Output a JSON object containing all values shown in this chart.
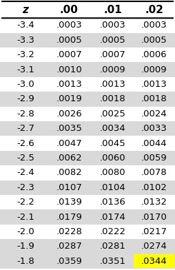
{
  "headers": [
    "z",
    ".00",
    ".01",
    ".02"
  ],
  "rows": [
    [
      "-3.4",
      ".0003",
      ".0003",
      ".0003"
    ],
    [
      "-3.3",
      ".0005",
      ".0005",
      ".0005"
    ],
    [
      "-3.2",
      ".0007",
      ".0007",
      ".0006"
    ],
    [
      "-3.1",
      ".0010",
      ".0009",
      ".0009"
    ],
    [
      "-3.0",
      ".0013",
      ".0013",
      ".0013"
    ],
    [
      "-2.9",
      ".0019",
      ".0018",
      ".0018"
    ],
    [
      "-2.8",
      ".0026",
      ".0025",
      ".0024"
    ],
    [
      "-2.7",
      ".0035",
      ".0034",
      ".0033"
    ],
    [
      "-2.6",
      ".0047",
      ".0045",
      ".0044"
    ],
    [
      "-2.5",
      ".0062",
      ".0060",
      ".0059"
    ],
    [
      "-2.4",
      ".0082",
      ".0080",
      ".0078"
    ],
    [
      "-2.3",
      ".0107",
      ".0104",
      ".0102"
    ],
    [
      "-2.2",
      ".0139",
      ".0136",
      ".0132"
    ],
    [
      "-2.1",
      ".0179",
      ".0174",
      ".0170"
    ],
    [
      "-2.0",
      ".0228",
      ".0222",
      ".0217"
    ],
    [
      "-1.9",
      ".0287",
      ".0281",
      ".0274"
    ],
    [
      "-1.8",
      ".0359",
      ".0351",
      ".0344"
    ]
  ],
  "shaded_rows": [
    1,
    3,
    5,
    7,
    9,
    11,
    13,
    15,
    16
  ],
  "highlighted_cell": [
    16,
    3
  ],
  "row_bg_odd": "#d9d9d9",
  "row_bg_even": "#ffffff",
  "highlight_color": "#ffff00",
  "header_bg": "#ffffff",
  "fig_bg": "#ffffff",
  "font_size": 9.5,
  "header_font_size": 11
}
